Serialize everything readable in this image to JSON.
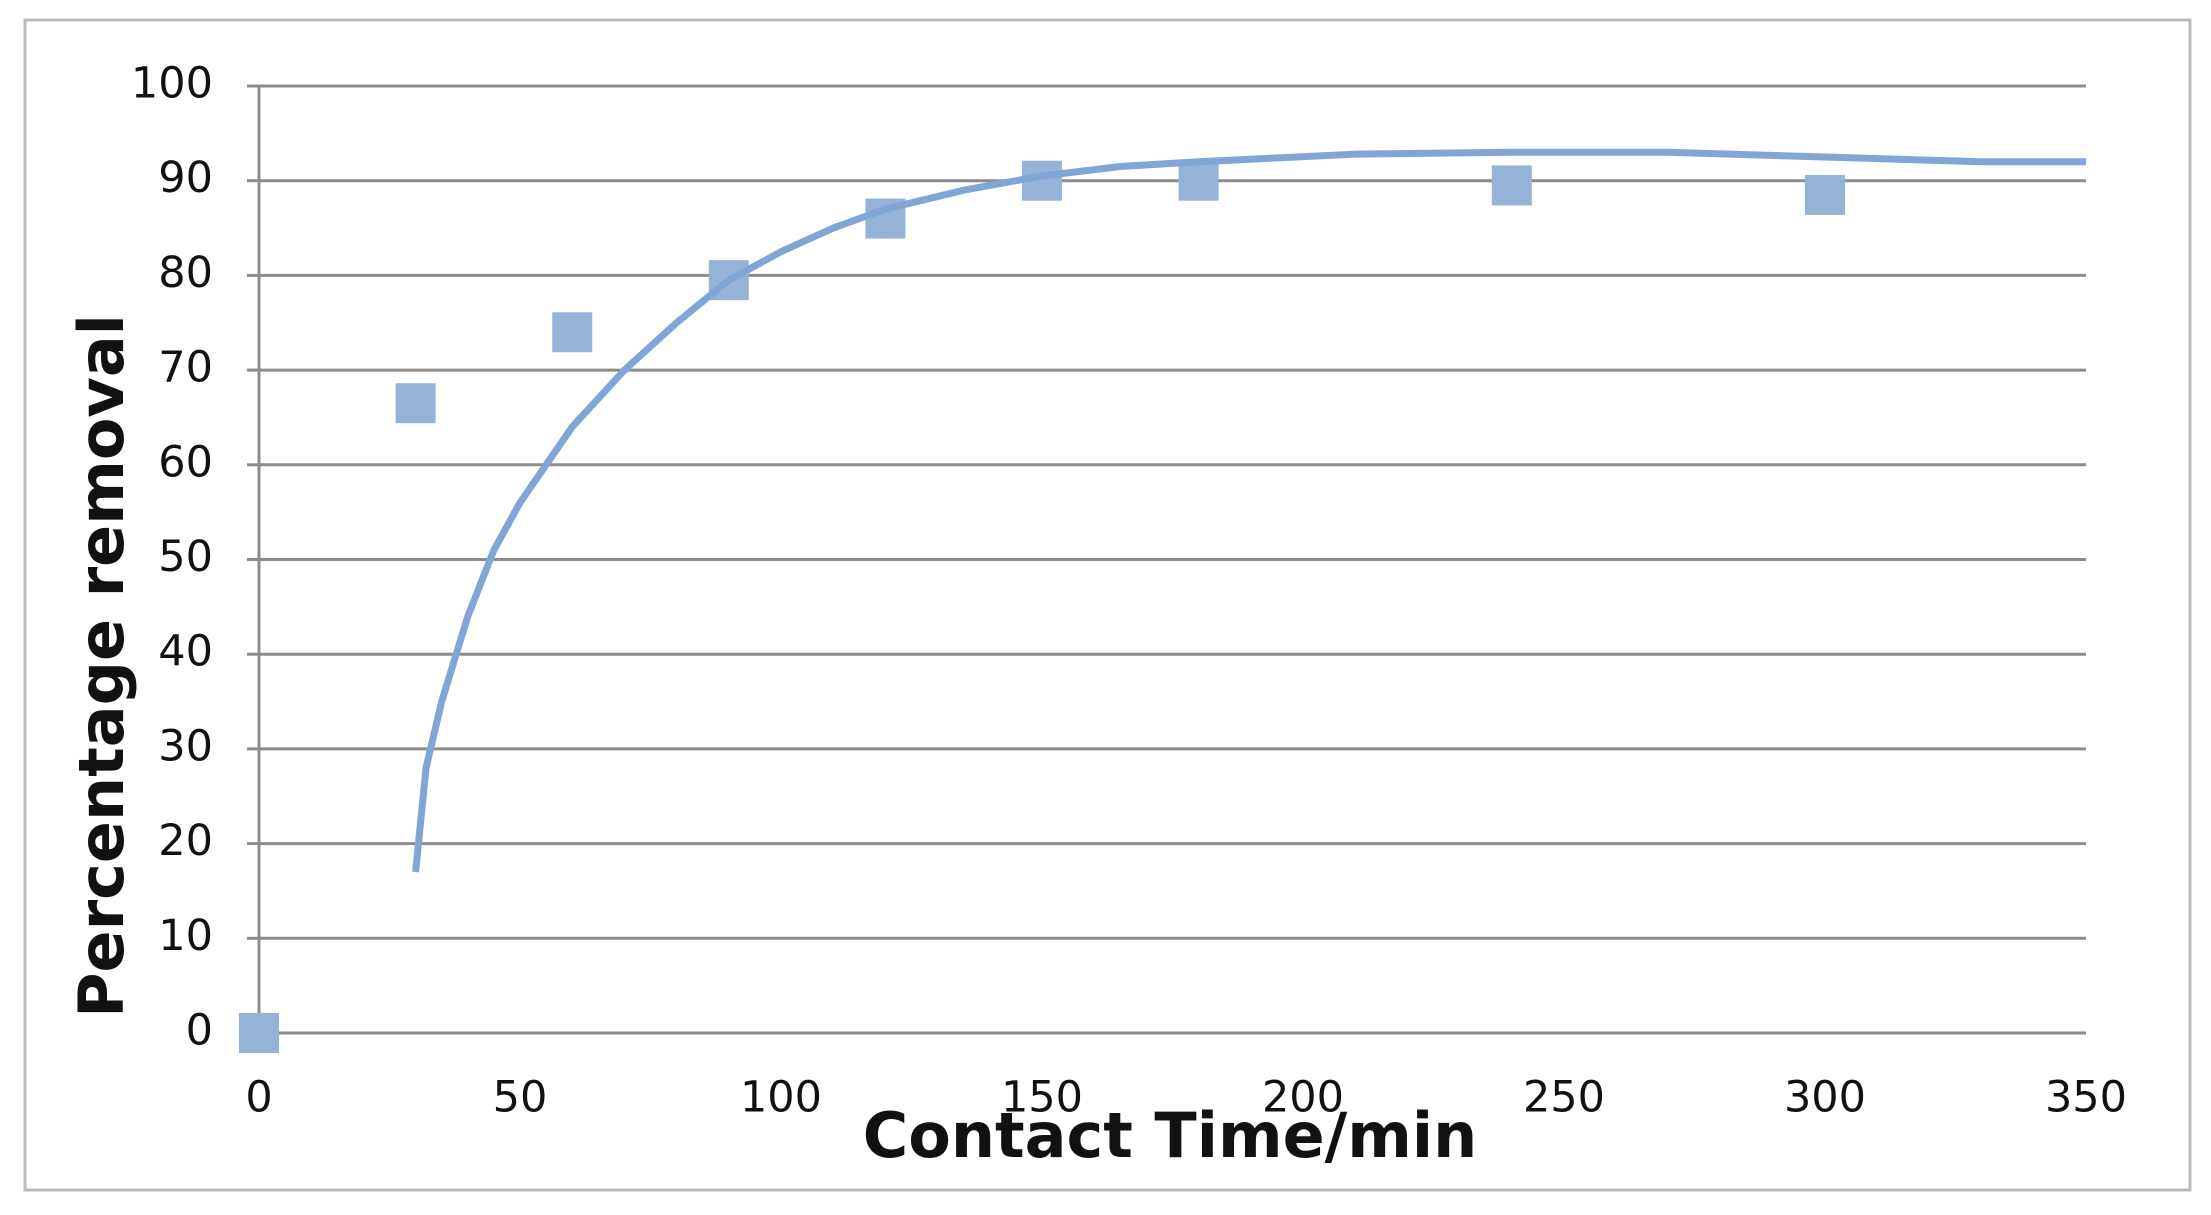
{
  "chart_data": {
    "type": "scatter",
    "x_label": "Contact Time/min",
    "y_label": "Percentage removal",
    "xlim": [
      0,
      350
    ],
    "xticks": [
      0,
      50,
      100,
      150,
      200,
      250,
      300,
      350
    ],
    "ylim": [
      0,
      100
    ],
    "yticks": [
      0,
      10,
      20,
      30,
      40,
      50,
      60,
      70,
      80,
      90,
      100
    ],
    "grid": true,
    "series": [
      {
        "type": "scatter",
        "marker": "square",
        "color": "#95b3d7",
        "x": [
          0,
          30,
          60,
          90,
          120,
          150,
          180,
          240,
          300
        ],
        "values": [
          0,
          66.5,
          74,
          79.5,
          86,
          90,
          90,
          89.5,
          88.5
        ]
      },
      {
        "type": "line",
        "color": "#7fa6d5",
        "x": [
          30,
          32,
          35,
          40,
          45,
          50,
          60,
          70,
          80,
          90,
          100,
          110,
          120,
          135,
          150,
          165,
          180,
          210,
          240,
          270,
          300,
          330,
          350
        ],
        "values": [
          17,
          28,
          35,
          44,
          51,
          56,
          64,
          70,
          75,
          79.5,
          82.5,
          85,
          87,
          89,
          90.5,
          91.5,
          92,
          92.8,
          93,
          93,
          92.5,
          92,
          92
        ]
      }
    ]
  }
}
